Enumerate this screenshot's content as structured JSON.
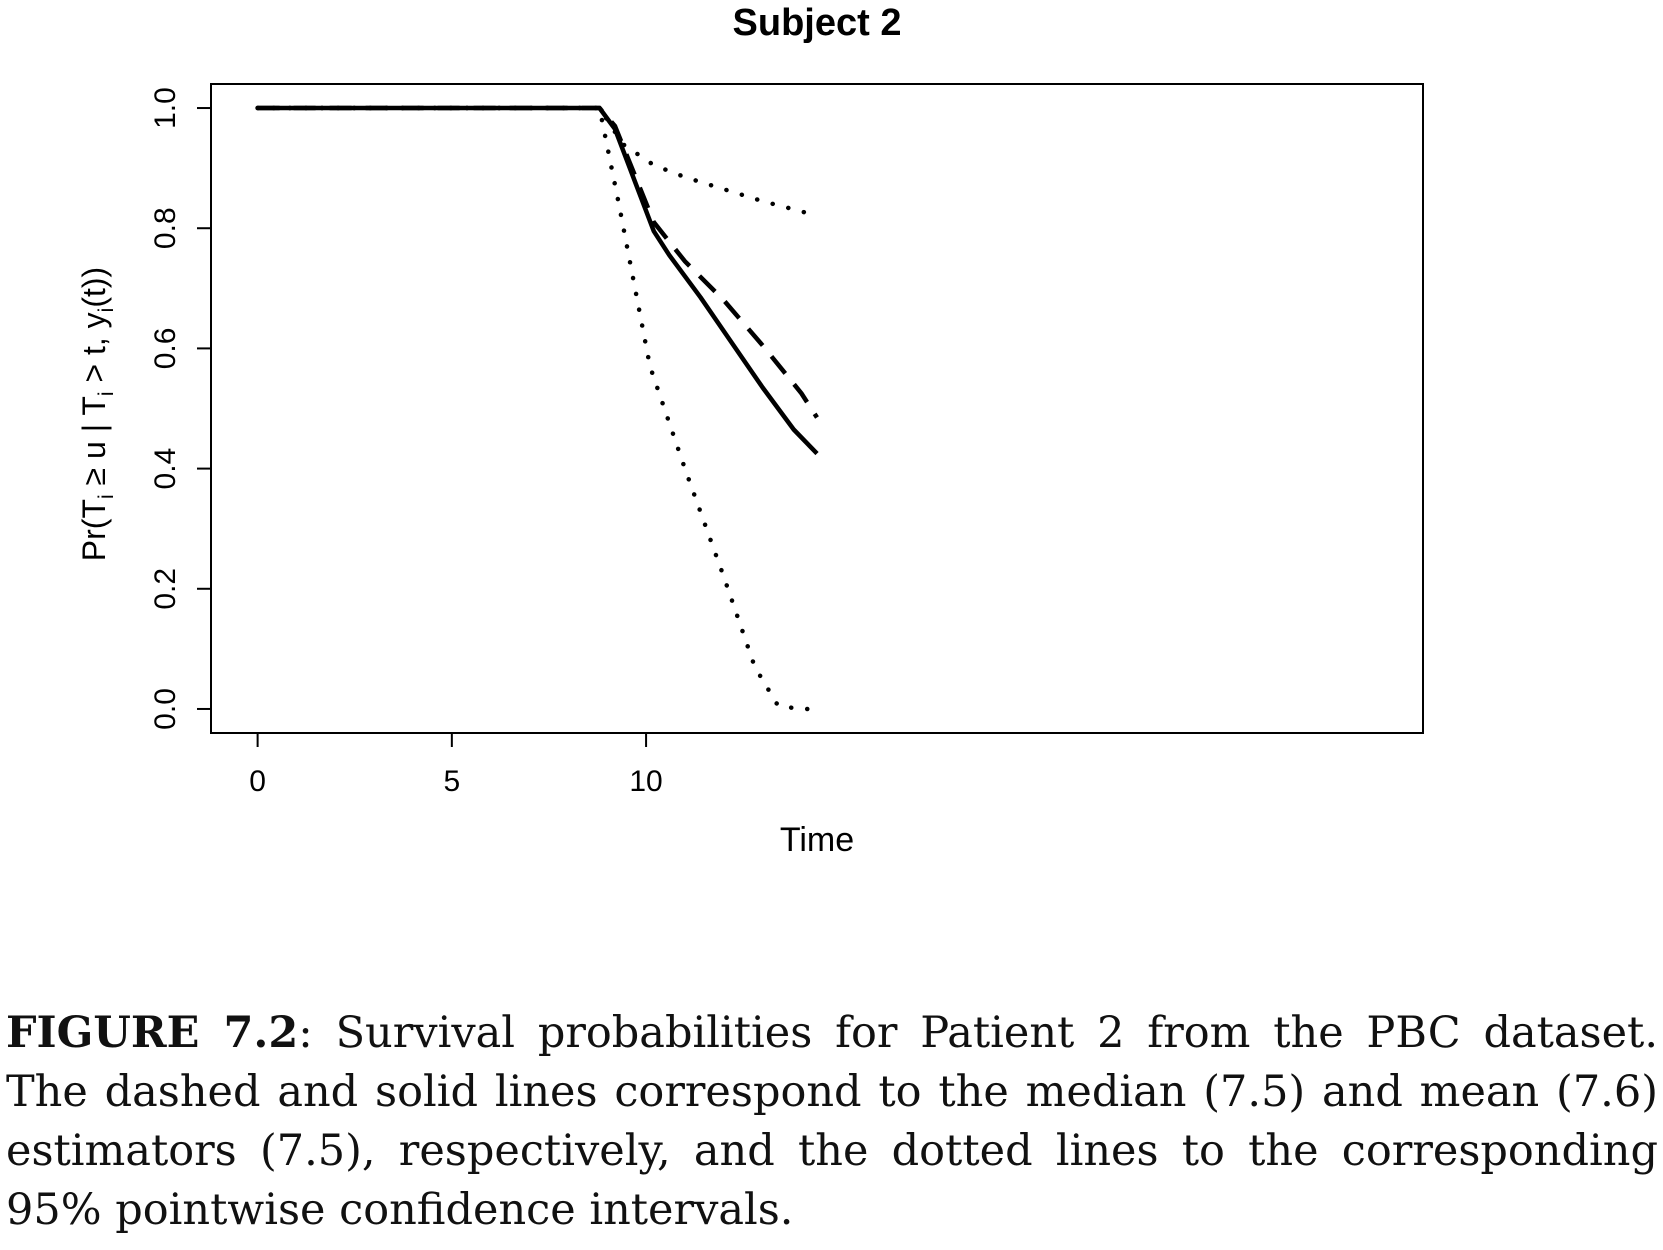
{
  "chart_data": {
    "type": "line",
    "title": "Subject 2",
    "xlabel": "Time",
    "ylabel": "Pr(T_i ≥ u | T_i > t, y_i(t))",
    "ylabel_parts": {
      "prefix": "Pr(T",
      "sub_i": "i",
      "ge": " ≥ u | T",
      "gt": " > t, y",
      "close": "(t))"
    },
    "xlim": [
      -1.2,
      30.0
    ],
    "ylim": [
      -0.04,
      1.04
    ],
    "x_ticks": [
      0,
      5,
      10
    ],
    "x_tick_labels": [
      "0",
      "5",
      "10"
    ],
    "y_ticks": [
      0.0,
      0.2,
      0.4,
      0.6,
      0.8,
      1.0
    ],
    "y_tick_labels": [
      "0.0",
      "0.2",
      "0.4",
      "0.6",
      "0.8",
      "1.0"
    ],
    "grid": false,
    "legend": "none",
    "series": [
      {
        "style": "solid",
        "x": [
          0,
          8.8,
          9.2,
          10.2,
          10.6,
          11.4,
          12.2,
          13.0,
          13.8,
          14.4
        ],
        "y": [
          1.0,
          1.0,
          0.965,
          0.795,
          0.755,
          0.685,
          0.61,
          0.535,
          0.465,
          0.425
        ]
      },
      {
        "style": "dashed",
        "x": [
          0,
          8.8,
          9.2,
          10.2,
          11.0,
          12.0,
          13.0,
          14.0,
          14.4
        ],
        "y": [
          1.0,
          1.0,
          0.97,
          0.81,
          0.745,
          0.68,
          0.605,
          0.525,
          0.485
        ]
      },
      {
        "style": "dotted",
        "x": [
          0,
          8.8,
          9.4,
          10.2,
          11.0,
          12.0,
          13.0,
          14.0,
          14.4
        ],
        "y": [
          1.0,
          1.0,
          0.94,
          0.905,
          0.885,
          0.865,
          0.845,
          0.828,
          0.82
        ]
      },
      {
        "style": "dotted",
        "x": [
          0,
          8.8,
          9.3,
          10.1,
          11.0,
          12.0,
          12.8,
          13.4,
          14.0,
          14.4
        ],
        "y": [
          1.0,
          1.0,
          0.84,
          0.57,
          0.4,
          0.22,
          0.07,
          0.005,
          0.0,
          0.0
        ]
      }
    ]
  },
  "caption": {
    "label": "FIGURE 7.2",
    "text": ": Survival probabilities for Patient 2 from the PBC dataset. The dashed and solid lines correspond to the median (7.5) and mean (7.6) estimators (7.5), respectively, and the dotted lines to the corresponding 95% pointwise confidence intervals."
  },
  "colors": {
    "line": "#000000",
    "background": "#ffffff"
  }
}
